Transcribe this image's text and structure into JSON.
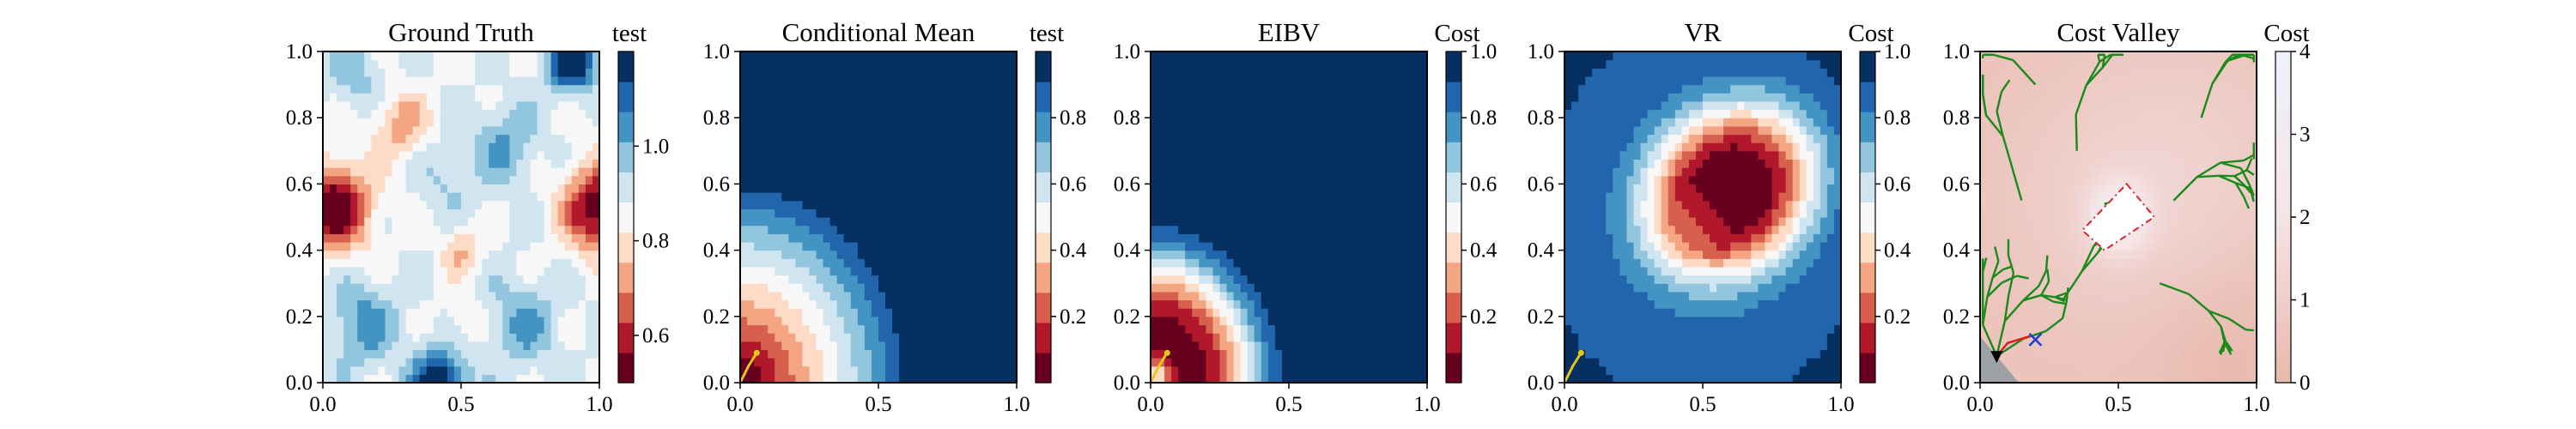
{
  "palette": {
    "rdbu": [
      "#67001f",
      "#b2182b",
      "#d6604d",
      "#f4a582",
      "#fddbc7",
      "#f7f7f7",
      "#d1e5f0",
      "#92c5de",
      "#4393c3",
      "#2166ac",
      "#053061"
    ],
    "cost": [
      "#f0d6d6",
      "#f4e6e8",
      "#f7f2f6",
      "#f3f4fb",
      "#eef1fb"
    ],
    "tree": "#1a8a1a",
    "path_red": "#e41a1c",
    "path_yellow": "#e6c619",
    "polygon": "#d62728",
    "marker_blue": "#1f3fd6"
  },
  "chart_data": [
    {
      "type": "heatmap",
      "title": "Ground Truth",
      "colorbar_label": "test",
      "xlim": [
        0,
        1
      ],
      "ylim": [
        0,
        1
      ],
      "xticks": [
        "0.0",
        "0.5",
        "1.0"
      ],
      "yticks": [
        "0.0",
        "0.2",
        "0.4",
        "0.6",
        "0.8",
        "1.0"
      ],
      "colorbar_range": [
        0.5,
        1.2
      ],
      "colorbar_ticks": [
        "0.6",
        "0.8",
        "1.0"
      ],
      "colorbar_tick_values": [
        0.6,
        0.8,
        1.0
      ],
      "field": "ground_truth"
    },
    {
      "type": "heatmap",
      "title": "Conditional Mean",
      "colorbar_label": "test",
      "xlim": [
        0,
        1
      ],
      "ylim": [
        0,
        1
      ],
      "xticks": [
        "0.0",
        "0.5",
        "1.0"
      ],
      "yticks": [
        "0.0",
        "0.2",
        "0.4",
        "0.6",
        "0.8",
        "1.0"
      ],
      "colorbar_range": [
        0.0,
        1.0
      ],
      "colorbar_ticks": [
        "0.2",
        "0.4",
        "0.6",
        "0.8"
      ],
      "colorbar_tick_values": [
        0.2,
        0.4,
        0.6,
        0.8
      ],
      "field": "conditional_mean",
      "path": [
        [
          0.0,
          0.0
        ],
        [
          0.03,
          0.05
        ],
        [
          0.06,
          0.09
        ]
      ]
    },
    {
      "type": "heatmap",
      "title": "EIBV",
      "colorbar_label": "Cost",
      "xlim": [
        0,
        1
      ],
      "ylim": [
        0,
        1
      ],
      "xticks": [
        "0.0",
        "0.5",
        "1.0"
      ],
      "yticks": [
        "0.0",
        "0.2",
        "0.4",
        "0.6",
        "0.8",
        "1.0"
      ],
      "colorbar_range": [
        0.0,
        1.0
      ],
      "colorbar_ticks": [
        "0.2",
        "0.4",
        "0.6",
        "0.8",
        "1.0"
      ],
      "colorbar_tick_values": [
        0.2,
        0.4,
        0.6,
        0.8,
        1.0
      ],
      "field": "eibv",
      "path": [
        [
          0.0,
          0.0
        ],
        [
          0.03,
          0.05
        ],
        [
          0.06,
          0.09
        ]
      ]
    },
    {
      "type": "heatmap",
      "title": "VR",
      "colorbar_label": "Cost",
      "xlim": [
        0,
        1
      ],
      "ylim": [
        0,
        1
      ],
      "xticks": [
        "0.0",
        "0.5",
        "1.0"
      ],
      "yticks": [
        "0.0",
        "0.2",
        "0.4",
        "0.6",
        "0.8",
        "1.0"
      ],
      "colorbar_range": [
        0.0,
        1.0
      ],
      "colorbar_ticks": [
        "0.2",
        "0.4",
        "0.6",
        "0.8",
        "1.0"
      ],
      "colorbar_tick_values": [
        0.2,
        0.4,
        0.6,
        0.8,
        1.0
      ],
      "field": "vr",
      "path": [
        [
          0.0,
          0.0
        ],
        [
          0.03,
          0.05
        ],
        [
          0.06,
          0.09
        ]
      ]
    },
    {
      "type": "heatmap",
      "title": "Cost Valley",
      "colorbar_label": "Cost",
      "xlim": [
        0,
        1
      ],
      "ylim": [
        0,
        1
      ],
      "xticks": [
        "0.0",
        "0.5",
        "1.0"
      ],
      "yticks": [
        "0.0",
        "0.2",
        "0.4",
        "0.6",
        "0.8",
        "1.0"
      ],
      "colorbar_range": [
        0,
        4
      ],
      "colorbar_ticks": [
        "0",
        "1",
        "2",
        "3",
        "4"
      ],
      "colorbar_tick_values": [
        0,
        1,
        2,
        3,
        4
      ],
      "field": "cost_valley",
      "polygon": [
        [
          0.53,
          0.6
        ],
        [
          0.63,
          0.5
        ],
        [
          0.45,
          0.4
        ],
        [
          0.37,
          0.46
        ]
      ],
      "start": [
        0.06,
        0.08
      ],
      "path": [
        [
          0.06,
          0.08
        ],
        [
          0.1,
          0.12
        ],
        [
          0.18,
          0.14
        ]
      ],
      "goal": [
        0.2,
        0.13
      ]
    }
  ]
}
